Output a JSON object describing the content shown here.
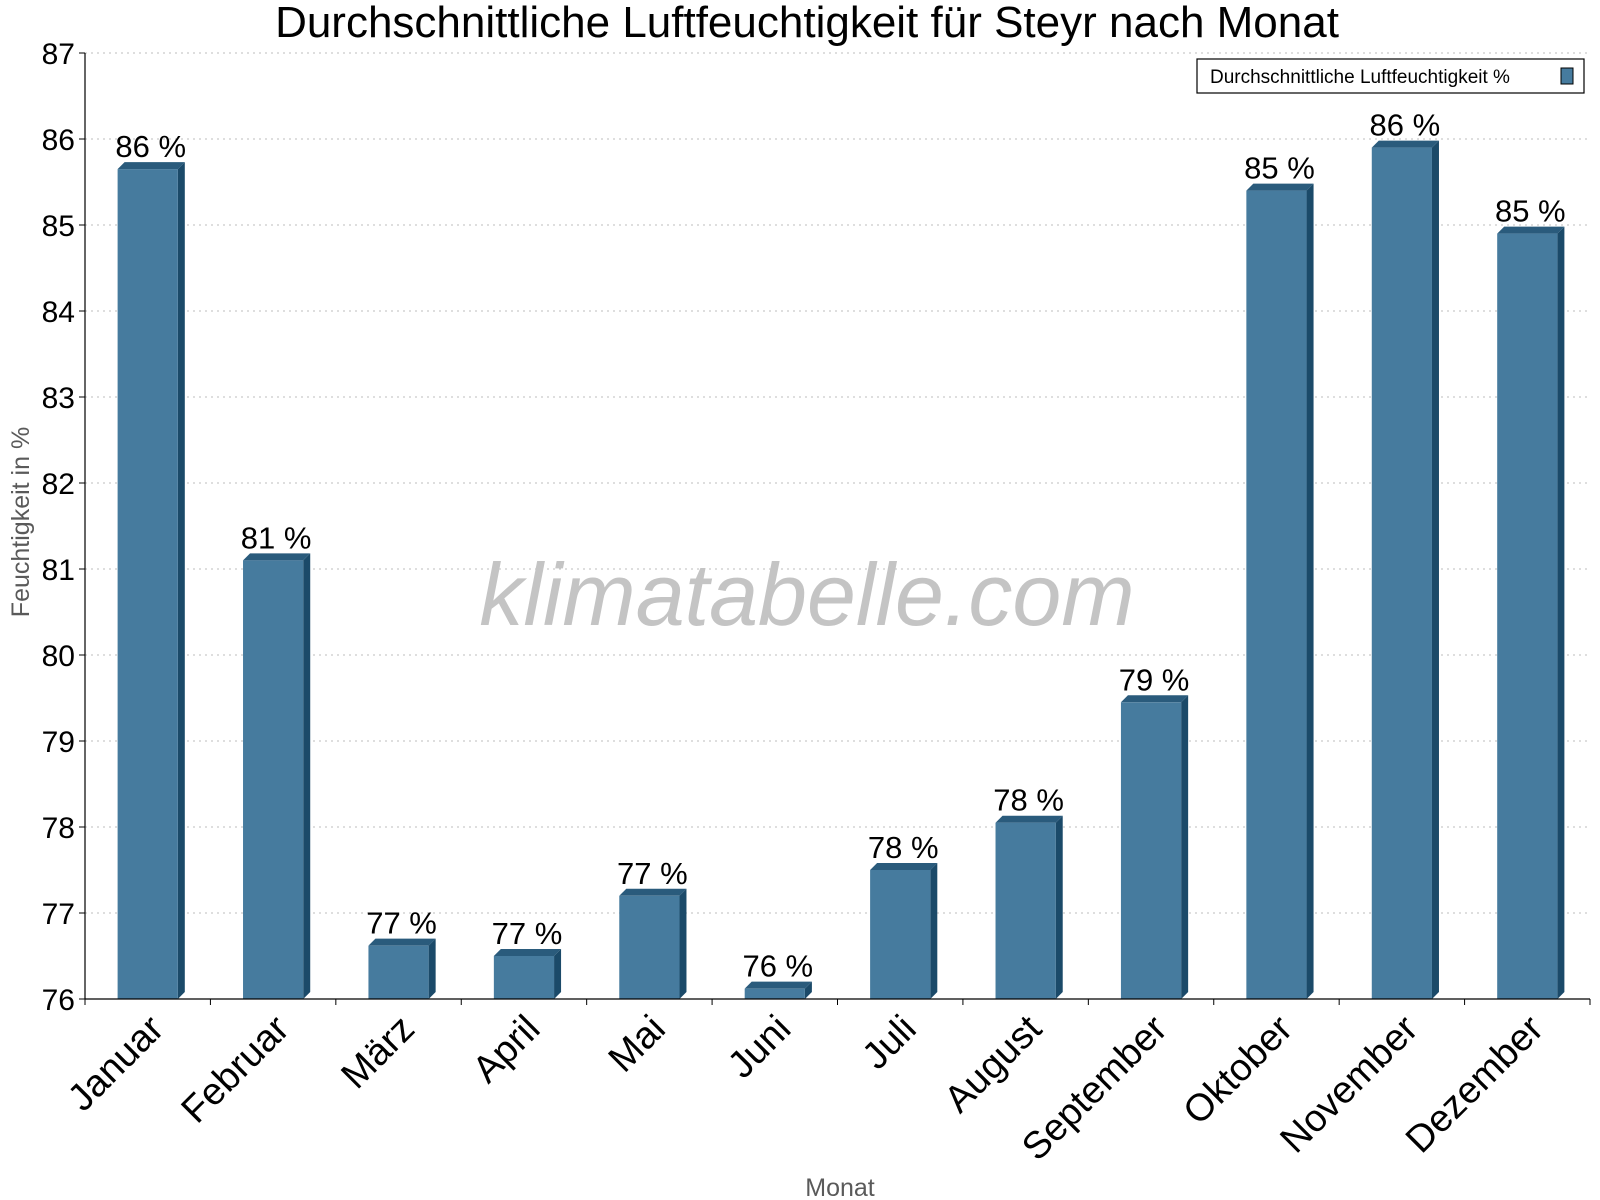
{
  "chart_data": {
    "type": "bar",
    "title": "Durchschnittliche Luftfeuchtigkeit für Steyr nach Monat",
    "xlabel": "Monat",
    "ylabel": "Feuchtigkeit in %",
    "categories": [
      "Januar",
      "Februar",
      "März",
      "April",
      "Mai",
      "Juni",
      "Juli",
      "August",
      "September",
      "Oktober",
      "November",
      "Dezember"
    ],
    "series": [
      {
        "name": "Durchschnittliche Luftfeuchtigkeit %",
        "values": [
          85.65,
          81.1,
          76.62,
          76.5,
          77.2,
          76.12,
          77.5,
          78.05,
          79.45,
          85.4,
          85.9,
          84.9
        ],
        "labels": [
          "86 %",
          "81 %",
          "77 %",
          "77 %",
          "77 %",
          "76 %",
          "78 %",
          "78 %",
          "79 %",
          "85 %",
          "86 %",
          "85 %"
        ]
      }
    ],
    "ylim": [
      76,
      87
    ],
    "yticks": [
      76,
      77,
      78,
      79,
      80,
      81,
      82,
      83,
      84,
      85,
      86,
      87
    ],
    "grid": true,
    "legend_position": "top-right",
    "colors": {
      "bar": "#467b9e",
      "bar_side": "#1b4a69",
      "bar_top": "#2a5b7c",
      "grid": "#bdbdbd"
    },
    "watermark": "klimatabelle.com"
  }
}
